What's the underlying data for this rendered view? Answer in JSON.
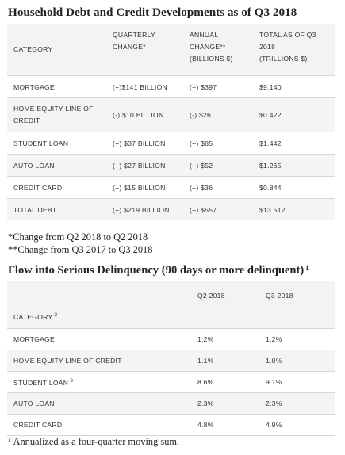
{
  "title1": "Household Debt and Credit Developments as of Q3 2018",
  "table1": {
    "headers": {
      "category": "CATEGORY",
      "quarterly_l1": "QUARTERLY",
      "quarterly_l2": "CHANGE*",
      "annual_l1": "ANNUAL",
      "annual_l2": "CHANGE**",
      "annual_l3": "(BILLIONS $)",
      "total_l1": "TOTAL AS OF Q3",
      "total_l2": "2018",
      "total_l3": "(TRILLIONS $)"
    },
    "rows": [
      {
        "category": "MORTGAGE",
        "quarterly": "(+)$141 BILLION",
        "annual": "(+) $397",
        "total": "$9.140"
      },
      {
        "category_l1": "HOME EQUITY LINE OF",
        "category_l2": "CREDIT",
        "quarterly": "(-) $10 BILLION",
        "annual": "(-) $26",
        "total": "$0.422"
      },
      {
        "category": "STUDENT LOAN",
        "quarterly": "(+) $37 BILLION",
        "annual": "(+) $85",
        "total": "$1.442"
      },
      {
        "category": "AUTO LOAN",
        "quarterly": "(+) $27 BILLION",
        "annual": "(+) $52",
        "total": "$1.265"
      },
      {
        "category": "CREDIT CARD",
        "quarterly": "(+) $15 BILLION",
        "annual": "(+) $36",
        "total": "$0.844"
      },
      {
        "category": "TOTAL DEBT",
        "quarterly": "(+) $219 BILLION",
        "annual": "(+) $557",
        "total": "$13.512"
      }
    ]
  },
  "notes": {
    "note1": "*Change from Q2 2018 to Q2 2018",
    "note2": "**Change from Q3 2017 to Q3 2018"
  },
  "title2": "Flow into Serious Delinquency (90 days or more delinquent)",
  "title2_sup": "1",
  "table2": {
    "headers": {
      "category": "CATEGORY",
      "category_sup": "2",
      "q2": "Q2 2018",
      "q3": "Q3 2018"
    },
    "rows": [
      {
        "category": "MORTGAGE",
        "sup": "",
        "q2": "1.2%",
        "q3": "1.2%"
      },
      {
        "category": "HOME EQUITY LINE OF CREDIT",
        "sup": "",
        "q2": "1.1%",
        "q3": "1.0%"
      },
      {
        "category": "STUDENT LOAN",
        "sup": "3",
        "q2": "8.6%",
        "q3": "9.1%"
      },
      {
        "category": "AUTO LOAN",
        "sup": "",
        "q2": "2.3%",
        "q3": "2.3%"
      },
      {
        "category": "CREDIT CARD",
        "sup": "",
        "q2": "4.8%",
        "q3": "4.9%"
      }
    ]
  },
  "footnote": {
    "sup": "1",
    "text": "Annualized as a four-quarter moving sum."
  }
}
